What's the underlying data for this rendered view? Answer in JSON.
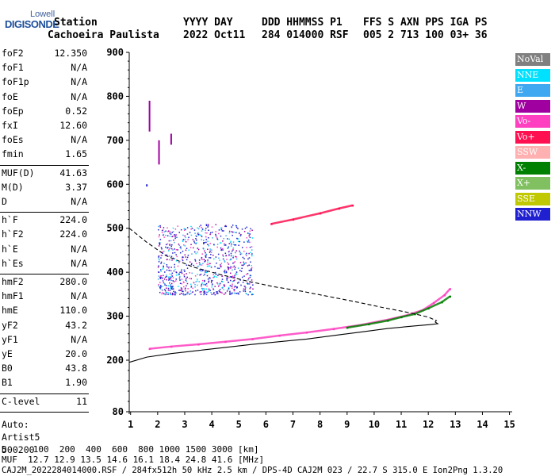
{
  "logo": {
    "line1": "Lowell",
    "line2": "DIGISONDE"
  },
  "header": {
    "row1": [
      "Station",
      "YYYY DAY",
      "DDD HHMMSS P1",
      "FFS S AXN PPS IGA PS"
    ],
    "row2": [
      "Cachoeira Paulista",
      "2022 Oct11",
      "284 014000 RSF",
      "005 2 713 100 03+ 36"
    ]
  },
  "parameters": {
    "group1": [
      {
        "name": "foF2",
        "value": "12.350"
      },
      {
        "name": "foF1",
        "value": "N/A"
      },
      {
        "name": "foF1p",
        "value": "N/A"
      },
      {
        "name": "foE",
        "value": "N/A"
      },
      {
        "name": "foEp",
        "value": "0.52"
      },
      {
        "name": "fxI",
        "value": "12.60"
      },
      {
        "name": "foEs",
        "value": "N/A"
      },
      {
        "name": "fmin",
        "value": "1.65"
      }
    ],
    "group2": [
      {
        "name": "MUF(D)",
        "value": "41.63"
      },
      {
        "name": "M(D)",
        "value": "3.37"
      },
      {
        "name": "D",
        "value": "N/A"
      }
    ],
    "group3": [
      {
        "name": "h`F",
        "value": "224.0"
      },
      {
        "name": "h`F2",
        "value": "224.0"
      },
      {
        "name": "h`E",
        "value": "N/A"
      },
      {
        "name": "h`Es",
        "value": "N/A"
      }
    ],
    "group4": [
      {
        "name": "hmF2",
        "value": "280.0"
      },
      {
        "name": "hmF1",
        "value": "N/A"
      },
      {
        "name": "hmE",
        "value": "110.0"
      },
      {
        "name": "yF2",
        "value": "43.2"
      },
      {
        "name": "yF1",
        "value": "N/A"
      },
      {
        "name": "yE",
        "value": "20.0"
      },
      {
        "name": "B0",
        "value": "43.8"
      },
      {
        "name": "B1",
        "value": "1.90"
      }
    ],
    "clevel": {
      "name": "C-level",
      "value": "11"
    },
    "auto": [
      "Auto:",
      "Artist5",
      "500200"
    ]
  },
  "legend": [
    {
      "label": "NoVal",
      "color": "#808080"
    },
    {
      "label": "NNE",
      "color": "#00e0ff"
    },
    {
      "label": "E",
      "color": "#40a8f0"
    },
    {
      "label": "W",
      "color": "#a000a0"
    },
    {
      "label": "Vo-",
      "color": "#ff40c0"
    },
    {
      "label": "Vo+",
      "color": "#ff1050"
    },
    {
      "label": "SSW",
      "color": "#ffb0b0"
    },
    {
      "label": "X-",
      "color": "#008000"
    },
    {
      "label": "X+",
      "color": "#80c060"
    },
    {
      "label": "SSE",
      "color": "#c0c800"
    },
    {
      "label": "NNW",
      "color": "#2020d0"
    }
  ],
  "footer": {
    "line1": "D     100  200  400  600  800 1000 1500 3000 [km]",
    "line2": "MUF  12.7 12.9 13.5 14.6 16.1 18.4 24.8 41.6 [MHz]",
    "line3": "CAJ2M_2022284014000.RSF / 284fx512h 50 kHz 2.5 km / DPS-4D CAJ2M 023 / 22.7 S 315.0 E Ion2Png 1.3.20"
  },
  "chart_data": {
    "type": "scatter",
    "x_ticks": [
      "1",
      "2",
      "3",
      "4",
      "5",
      "6",
      "7",
      "8",
      "9",
      "10",
      "11",
      "12",
      "13",
      "14",
      "15"
    ],
    "y_ticks": [
      "80",
      "200",
      "300",
      "400",
      "500",
      "600",
      "700",
      "800",
      "900"
    ],
    "xlim": [
      0.95,
      15.1
    ],
    "ylim": [
      80,
      900
    ],
    "grid": false,
    "legend_position": "right",
    "series": [
      {
        "name": "O-trace",
        "color": "#ff40c0",
        "x": [
          1.7,
          2.5,
          3.5,
          4.5,
          5.5,
          6.5,
          7.5,
          8.5,
          9.5,
          10.5,
          11.2,
          11.8,
          12.2,
          12.6,
          12.8
        ],
        "y": [
          226,
          231,
          236,
          242,
          248,
          256,
          263,
          271,
          280,
          292,
          302,
          314,
          330,
          348,
          362
        ]
      },
      {
        "name": "X-trace",
        "color": "#008000",
        "x": [
          9.0,
          9.8,
          10.5,
          11.0,
          11.5,
          12.0,
          12.5,
          12.8
        ],
        "y": [
          274,
          282,
          290,
          298,
          305,
          318,
          332,
          345
        ]
      },
      {
        "name": "profile",
        "color": "#000000",
        "x": [
          0.95,
          1.6,
          2.5,
          3.5,
          4.5,
          5.5,
          6.5,
          7.5,
          8.5,
          9.5,
          10.5,
          11.5,
          12.1,
          12.35,
          12.25
        ],
        "y": [
          195,
          207,
          215,
          222,
          229,
          236,
          242,
          248,
          256,
          264,
          272,
          278,
          281,
          283,
          287
        ]
      },
      {
        "name": "topside",
        "color": "#000000",
        "dashed": true,
        "x": [
          0.95,
          1.6,
          2.3,
          3.3,
          4.3,
          5.3,
          6.3,
          7.3,
          8.3,
          9.3,
          10.3,
          11.3,
          12.0,
          12.3,
          12.25
        ],
        "y": [
          500,
          468,
          438,
          412,
          395,
          380,
          367,
          357,
          345,
          333,
          320,
          308,
          298,
          290,
          287
        ]
      },
      {
        "name": "spread-F",
        "color": "#2020d0",
        "x_range": [
          2.0,
          5.5
        ],
        "y_range": [
          350,
          510
        ]
      },
      {
        "name": "upper-trace",
        "color": "#ff1050",
        "x": [
          6.2,
          7.0,
          8.0,
          8.7,
          9.2
        ],
        "y": [
          510,
          520,
          534,
          545,
          552
        ]
      }
    ]
  }
}
